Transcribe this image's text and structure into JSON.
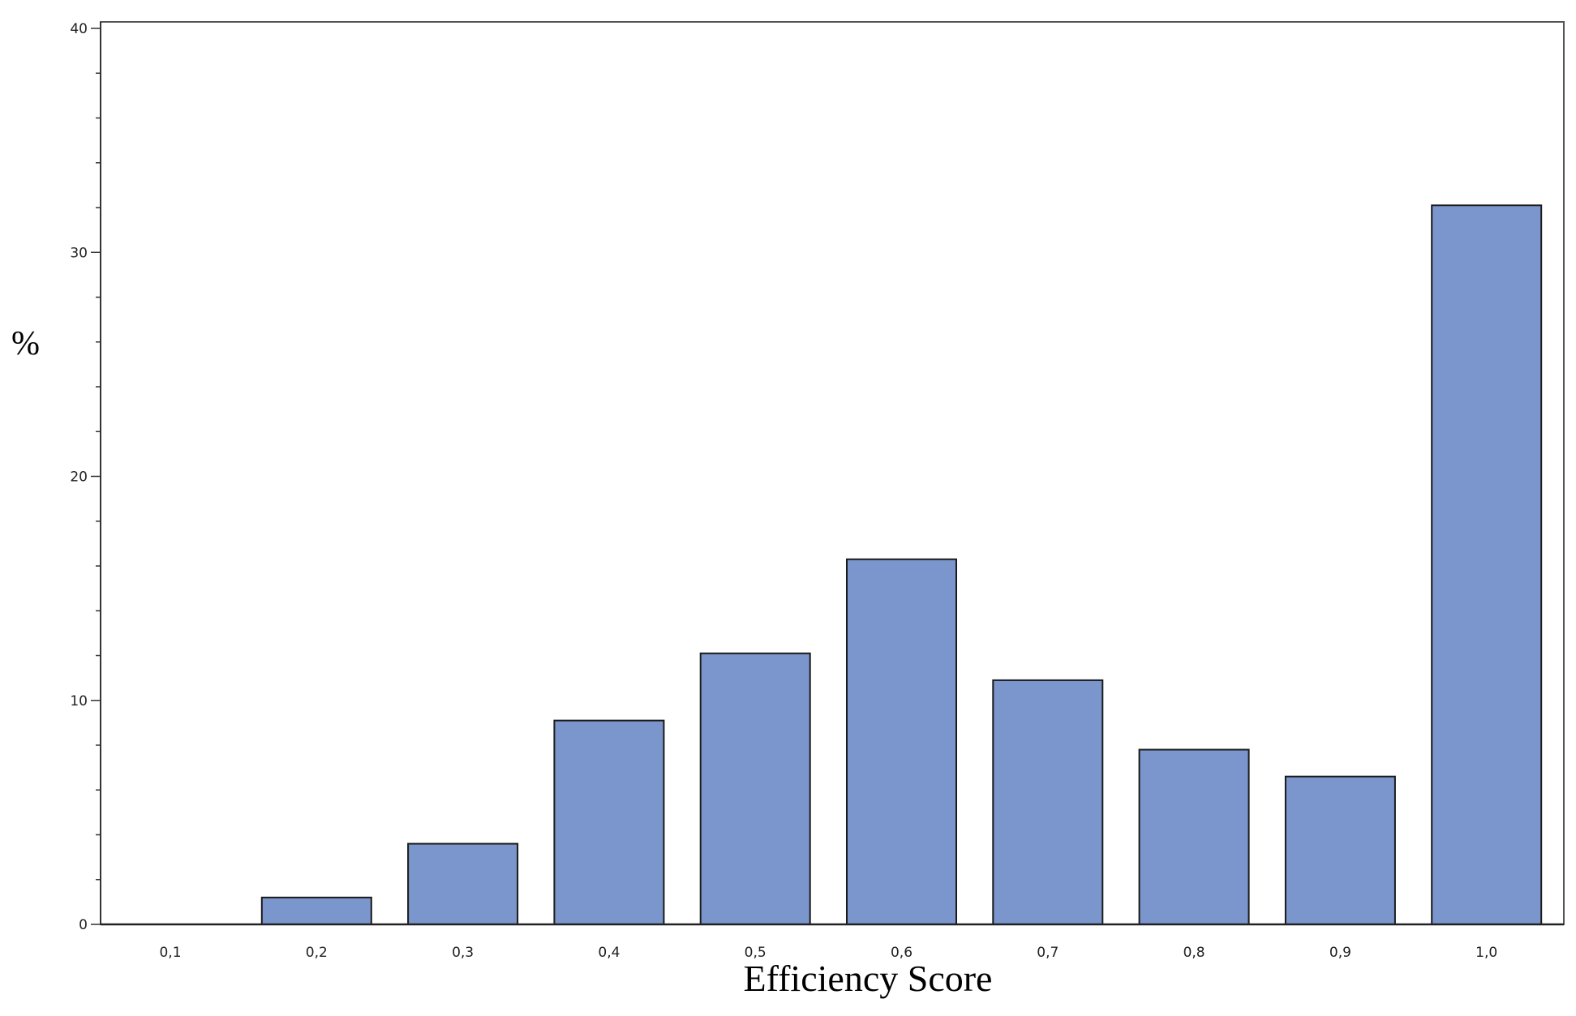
{
  "chart_data": {
    "type": "bar",
    "title": "",
    "xlabel": "Efficiency Score",
    "ylabel": "%",
    "categories": [
      "0,1",
      "0,2",
      "0,3",
      "0,4",
      "0,5",
      "0,6",
      "0,7",
      "0,8",
      "0,9",
      "1,0"
    ],
    "values": [
      0,
      1.2,
      3.6,
      9.1,
      12.1,
      16.3,
      10.9,
      7.8,
      6.6,
      32.1
    ],
    "ylim": [
      0,
      40
    ],
    "yticks": [
      "0",
      "10",
      "20",
      "30",
      "40"
    ],
    "grid": false,
    "legend": "none",
    "bar_color": "#7b96cc",
    "bar_edge_color": "#1a1a1a"
  }
}
